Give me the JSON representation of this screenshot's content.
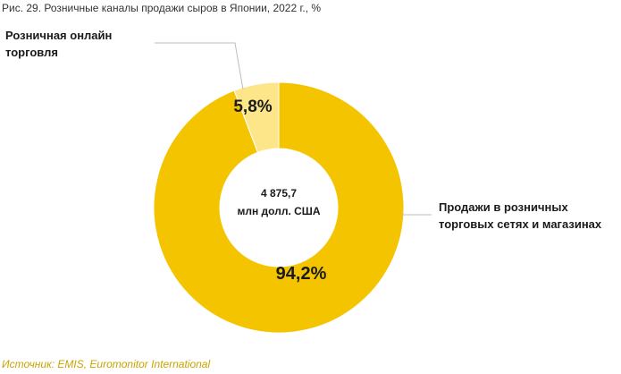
{
  "chart_data": {
    "type": "pie",
    "title": "Рис. 29. Розничные каналы продажи сыров в Японии, 2022 г., %",
    "center_text": [
      "4 875,7",
      "млн долл. США"
    ],
    "slices": [
      {
        "label_lines": [
          "Продажи в розничных",
          "торговых сетях и магазинах"
        ],
        "value": 94.2,
        "value_label": "94,2%",
        "color": "#f5c400"
      },
      {
        "label_lines": [
          "Розничная онлайн",
          "торговля"
        ],
        "value": 5.8,
        "value_label": "5,8%",
        "color": "#fde68a"
      }
    ],
    "source": "Источник: EMIS,  Euromonitor International"
  }
}
